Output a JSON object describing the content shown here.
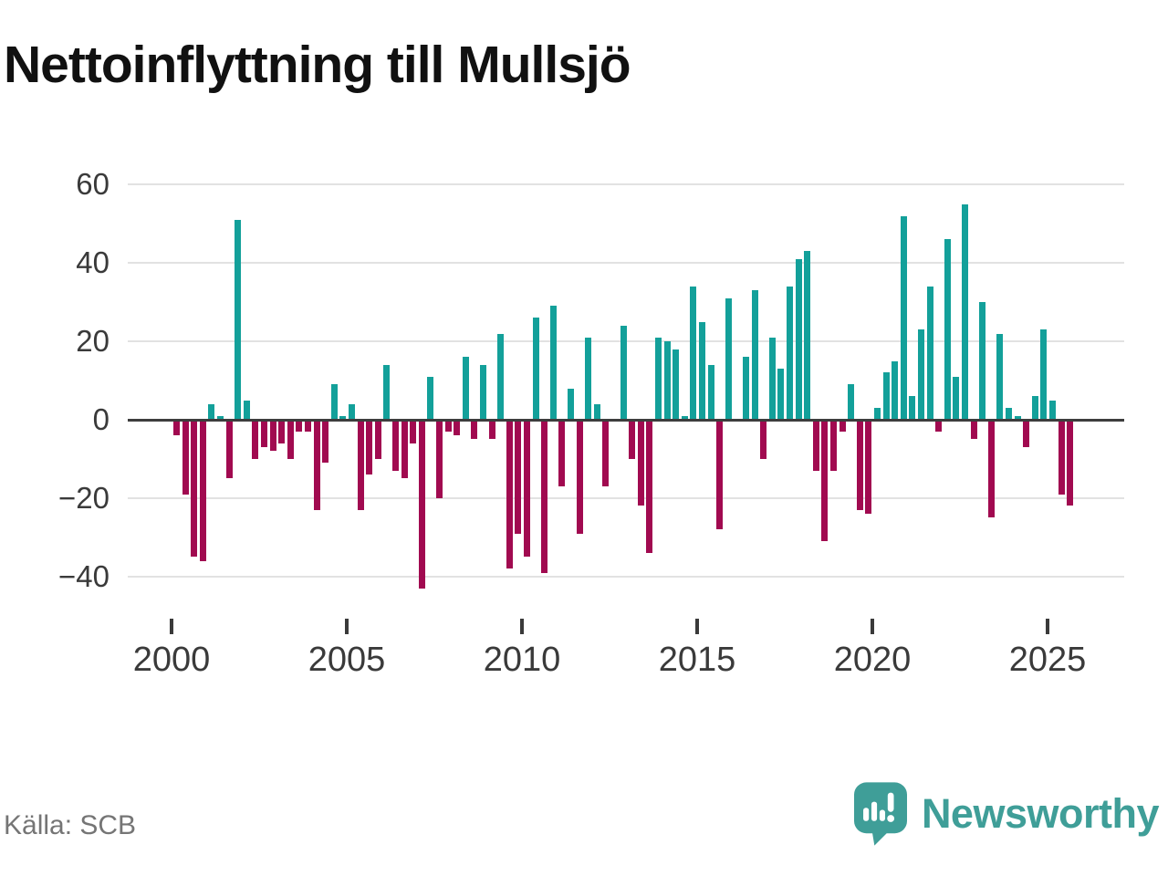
{
  "title": "Nettoinflyttning till Mullsjö",
  "source": "Källa: SCB",
  "branding": {
    "name": "Newsworthy",
    "logo_icon": "speech-bubble-bar-chart-icon"
  },
  "colors": {
    "positive": "#13a09a",
    "negative": "#a10a50",
    "grid": "#e2e2e2",
    "zero_line": "#3d3d3d",
    "axis_text": "#3a3a3a",
    "title_text": "#111111",
    "source_text": "#757575",
    "brand": "#3f9e98"
  },
  "chart_data": {
    "type": "bar",
    "title": "Nettoinflyttning till Mullsjö",
    "x_unit": "quarter",
    "start_period": "2000Q1",
    "end_period": "2025Q3",
    "x_tick_labels": [
      "2000",
      "2005",
      "2010",
      "2015",
      "2020",
      "2025"
    ],
    "y_ticks": [
      60,
      40,
      20,
      0,
      -20,
      -40
    ],
    "y_tick_labels": [
      "60",
      "40",
      "20",
      "0",
      "−20",
      "−40"
    ],
    "ylim": [
      -48,
      62
    ],
    "grid": true,
    "legend": false,
    "values": [
      -4,
      -19,
      -35,
      -36,
      4,
      1,
      -15,
      51,
      5,
      -10,
      -7,
      -8,
      -6,
      -10,
      -3,
      -3,
      -23,
      -11,
      9,
      1,
      4,
      -23,
      -14,
      -10,
      14,
      -13,
      -15,
      -6,
      -43,
      11,
      -20,
      -3,
      -4,
      16,
      -5,
      14,
      -5,
      22,
      -38,
      -29,
      -35,
      26,
      -39,
      29,
      -17,
      8,
      -29,
      21,
      4,
      -17,
      0,
      24,
      -10,
      -22,
      -34,
      21,
      20,
      18,
      1,
      34,
      25,
      14,
      -28,
      31,
      0,
      16,
      33,
      -10,
      21,
      13,
      34,
      41,
      43,
      -13,
      -31,
      -13,
      -3,
      9,
      -23,
      -24,
      3,
      12,
      15,
      52,
      6,
      23,
      34,
      -3,
      46,
      11,
      55,
      -5,
      30,
      -25,
      22,
      3,
      1,
      -7,
      6,
      23,
      5,
      -19,
      -22
    ]
  },
  "layout_note": "quarterly net migration bars, teal positive, crimson negative"
}
